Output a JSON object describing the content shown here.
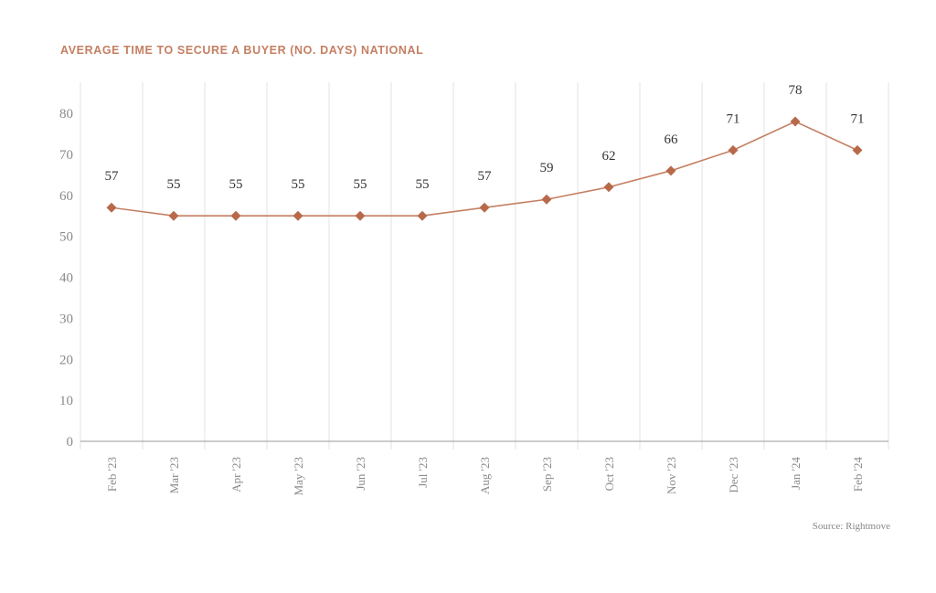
{
  "chart_data": {
    "type": "line",
    "title": "AVERAGE TIME TO SECURE A BUYER (NO. DAYS) NATIONAL",
    "xlabel": "",
    "ylabel": "",
    "categories": [
      "Feb '23",
      "Mar '23",
      "Apr '23",
      "May '23",
      "Jun '23",
      "Jul '23",
      "Aug '23",
      "Sep '23",
      "Oct '23",
      "Nov '23",
      "Dec '23",
      "Jan '24",
      "Feb '24"
    ],
    "series": [
      {
        "name": "Average time to secure a buyer (days)",
        "values": [
          57,
          55,
          55,
          55,
          55,
          55,
          57,
          59,
          62,
          66,
          71,
          78,
          71
        ]
      }
    ],
    "ylim": [
      0,
      80
    ],
    "yticks": [
      0,
      10,
      20,
      30,
      40,
      50,
      60,
      70,
      80
    ],
    "grid": "vertical",
    "data_labels": true,
    "legend": "none",
    "source": "Source: Rightmove",
    "colors": {
      "line": "#c47f62",
      "marker": "#b8694a",
      "grid": "#e3e3e3",
      "axis": "#999999"
    }
  }
}
